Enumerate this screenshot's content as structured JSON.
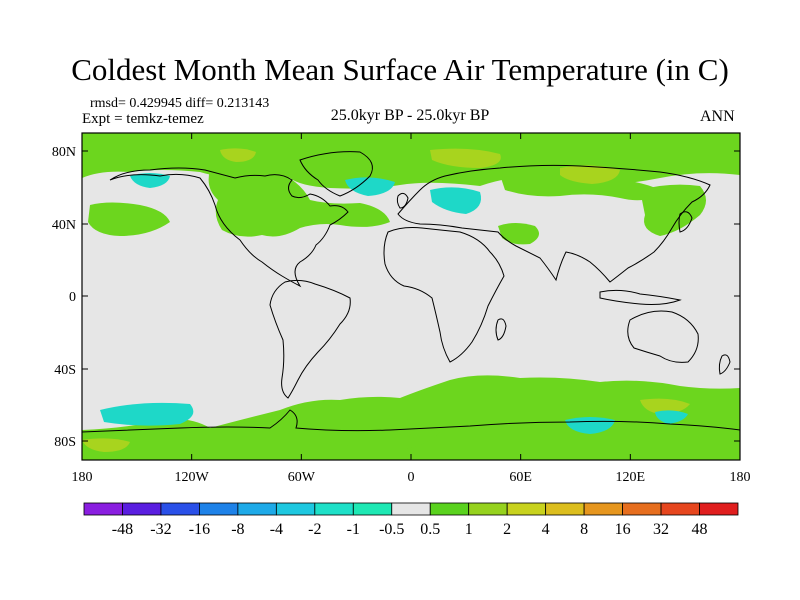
{
  "title": "Coldest Month Mean Surface Air Temperature (in C)",
  "stats": "rmsd= 0.429945 diff= 0.213143",
  "experiment": "Expt = temkz-temez",
  "period": "25.0kyr BP - 25.0kyr BP",
  "season": "ANN",
  "lat_ticks": [
    "80N",
    "40N",
    "0",
    "40S",
    "80S"
  ],
  "lon_ticks": [
    "180",
    "120W",
    "60W",
    "0",
    "60E",
    "120E",
    "180"
  ],
  "legend": {
    "labels": [
      "-48",
      "-32",
      "-16",
      "-8",
      "-4",
      "-2",
      "-1",
      "-0.5",
      "0.5",
      "1",
      "2",
      "4",
      "8",
      "16",
      "32",
      "48"
    ],
    "colors": [
      "#8a1ee0",
      "#5a1ee0",
      "#2a50e8",
      "#1e82e8",
      "#1eaae8",
      "#1ec8e0",
      "#1ee0c8",
      "#1ee8b4",
      "#e6e6e6",
      "#5ad21e",
      "#96d21e",
      "#c8d21e",
      "#dcbe1e",
      "#e6961e",
      "#e66e1e",
      "#e6461e",
      "#e01e1e"
    ]
  },
  "colors": {
    "no_change": "#e6e6e6",
    "light_warming": "#6cd61e",
    "moderate_warming": "#a8d41e",
    "light_cooling": "#1ed8c8"
  }
}
